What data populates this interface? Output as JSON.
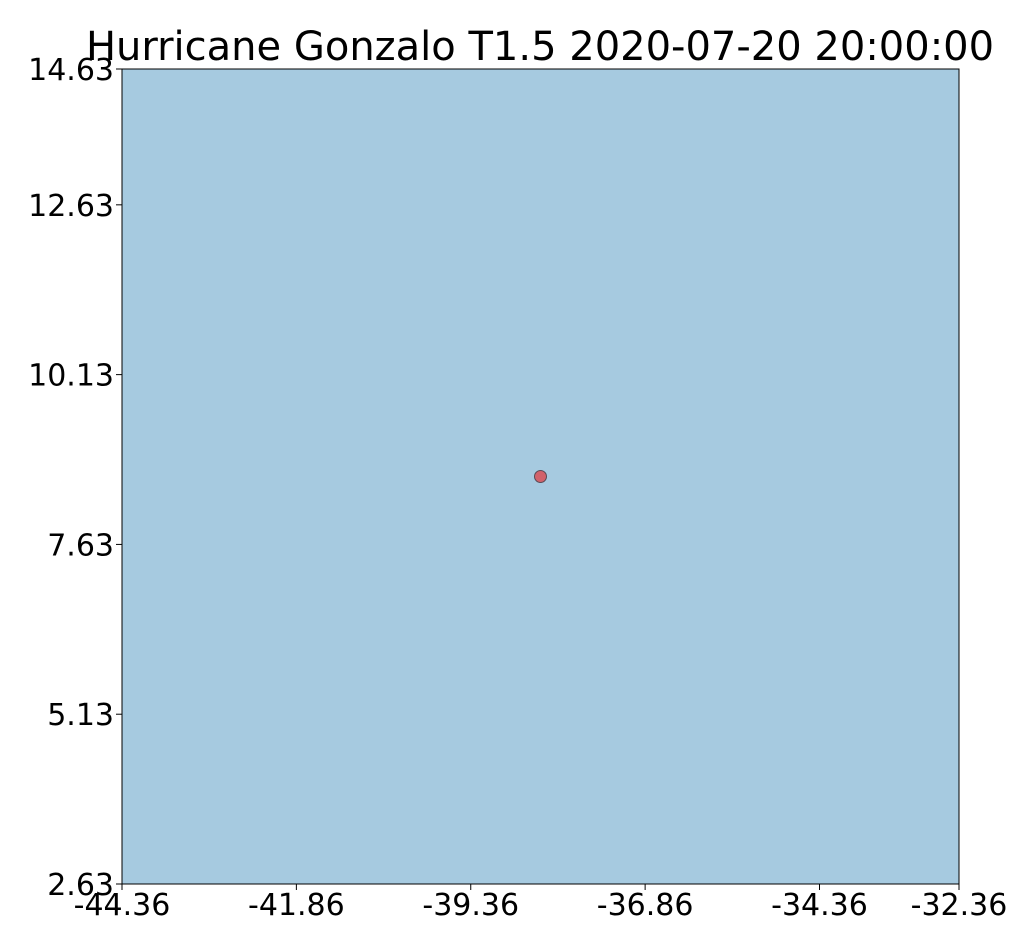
{
  "chart_data": {
    "type": "scatter",
    "title": "Hurricane Gonzalo T1.5 2020-07-20 20:00:00",
    "xlabel": "",
    "ylabel": "",
    "xlim": [
      -44.36,
      -32.36
    ],
    "ylim": [
      2.63,
      14.63
    ],
    "x_ticks": [
      -44.36,
      -41.86,
      -39.36,
      -36.86,
      -34.36,
      -32.36
    ],
    "x_tick_labels": [
      "-44.36",
      "-41.86",
      "-39.36",
      "-36.86",
      "-34.36",
      "-32.36"
    ],
    "y_ticks": [
      2.63,
      5.13,
      7.63,
      10.13,
      12.63,
      14.63
    ],
    "y_tick_labels": [
      "2.63",
      "5.13",
      "7.63",
      "10.13",
      "12.63",
      "14.63"
    ],
    "grid": false,
    "legend": "none",
    "background_color": "#a6cae0",
    "point_color": "#d1626b",
    "point_edge_color": "#5a4a55",
    "points": [
      {
        "x": -38.36,
        "y": 8.63
      }
    ]
  }
}
